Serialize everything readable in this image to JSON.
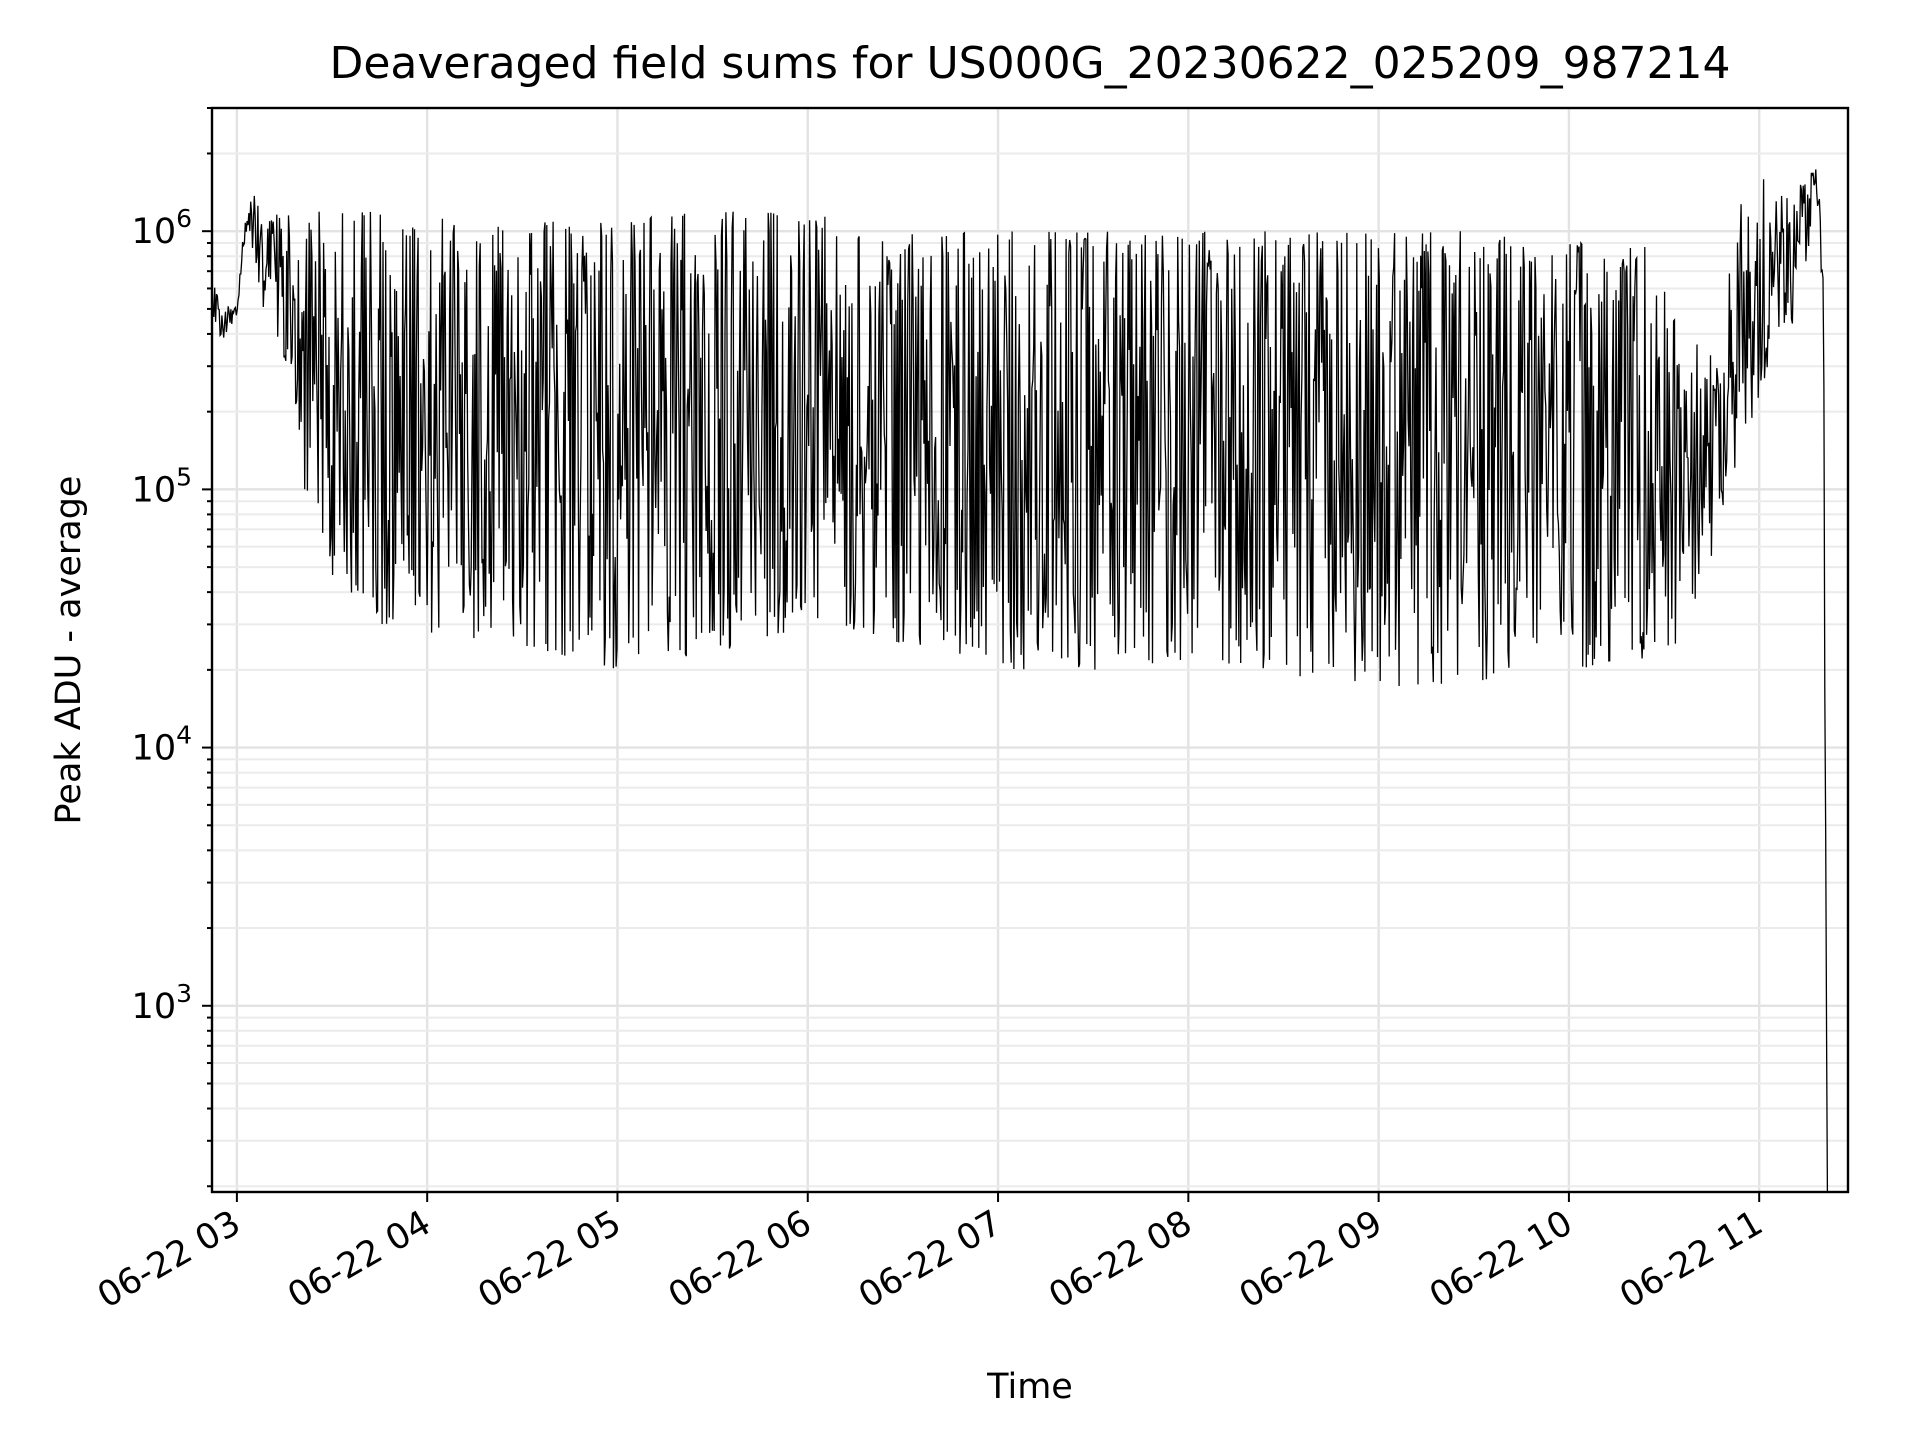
{
  "chart_data": {
    "type": "line",
    "title": "Deaveraged field sums for US000G_20230622_025209_987214",
    "xlabel": "Time",
    "ylabel": "Peak ADU - average",
    "yscale": "log",
    "ylim": [
      190,
      3000000
    ],
    "xlim": [
      "2023-06-22T02:52:09",
      "2023-06-22T11:28:00"
    ],
    "grid": "on",
    "legend": "none",
    "line_color": "#000000",
    "x_tick_labels": [
      "06-22 03",
      "06-22 04",
      "06-22 05",
      "06-22 06",
      "06-22 07",
      "06-22 08",
      "06-22 09",
      "06-22 10",
      "06-22 11"
    ],
    "x_tick_times": [
      "2023-06-22T03:00:00",
      "2023-06-22T04:00:00",
      "2023-06-22T05:00:00",
      "2023-06-22T06:00:00",
      "2023-06-22T07:00:00",
      "2023-06-22T08:00:00",
      "2023-06-22T09:00:00",
      "2023-06-22T10:00:00",
      "2023-06-22T11:00:00"
    ],
    "y_ticks": [
      {
        "value": 1000,
        "base": "10",
        "exp": "3"
      },
      {
        "value": 10000,
        "base": "10",
        "exp": "4"
      },
      {
        "value": 100000,
        "base": "10",
        "exp": "5"
      },
      {
        "value": 1000000,
        "base": "10",
        "exp": "6"
      }
    ],
    "series": [
      {
        "x": [
          "2023-06-22T02:52:09",
          "2023-06-22T02:55:00",
          "2023-06-22T02:58:00",
          "2023-06-22T03:00:00",
          "2023-06-22T03:02:00",
          "2023-06-22T03:04:00",
          "2023-06-22T03:06:00",
          "2023-06-22T03:08:00",
          "2023-06-22T03:12:00",
          "2023-06-22T03:16:00",
          "2023-06-22T03:20:00",
          "2023-06-22T03:25:00",
          "2023-06-22T03:30:00",
          "2023-06-22T03:35:00",
          "2023-06-22T03:40:00",
          "2023-06-22T03:45:00",
          "2023-06-22T03:50:00",
          "2023-06-22T04:00:00",
          "2023-06-22T04:30:00",
          "2023-06-22T05:00:00",
          "2023-06-22T05:30:00",
          "2023-06-22T06:00:00",
          "2023-06-22T06:20:00",
          "2023-06-22T06:30:00",
          "2023-06-22T07:00:00",
          "2023-06-22T07:30:00",
          "2023-06-22T08:00:00",
          "2023-06-22T08:30:00",
          "2023-06-22T09:00:00",
          "2023-06-22T09:30:00",
          "2023-06-22T10:00:00",
          "2023-06-22T10:25:00",
          "2023-06-22T10:35:00",
          "2023-06-22T10:45:00",
          "2023-06-22T10:55:00",
          "2023-06-22T11:05:00",
          "2023-06-22T11:12:00",
          "2023-06-22T11:15:00",
          "2023-06-22T11:18:00",
          "2023-06-22T11:19:30",
          "2023-06-22T11:20:30",
          "2023-06-22T11:21:30"
        ],
        "lower": [
          400000,
          380000,
          380000,
          420000,
          800000,
          1000000,
          600000,
          500000,
          450000,
          200000,
          100000,
          60000,
          45000,
          40000,
          35000,
          30000,
          30000,
          28000,
          25000,
          20000,
          22000,
          30000,
          28000,
          22000,
          20000,
          20000,
          22000,
          18000,
          17000,
          18000,
          20000,
          20000,
          25000,
          50000,
          150000,
          350000,
          450000,
          700000,
          1500000,
          600000,
          30000,
          190
        ],
        "upper": [
          800000,
          500000,
          520000,
          550000,
          1000000,
          1300000,
          1400000,
          1500000,
          1500000,
          1300000,
          1200000,
          1200000,
          1200000,
          1200000,
          1200000,
          1200000,
          1200000,
          1200000,
          1100000,
          1100000,
          1200000,
          1200000,
          1000000,
          1000000,
          1000000,
          1000000,
          1000000,
          1000000,
          1000000,
          1000000,
          900000,
          900000,
          400000,
          350000,
          1600000,
          1600000,
          1500000,
          1700000,
          1900000,
          1800000,
          600000,
          190
        ]
      }
    ]
  }
}
